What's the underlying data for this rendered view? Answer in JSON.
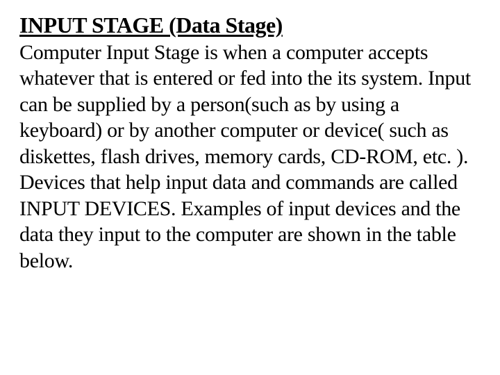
{
  "document": {
    "heading": "INPUT STAGE (Data Stage)",
    "body": "Computer Input Stage is when a computer accepts whatever that is entered or fed into the its system. Input can be supplied by a person(such as by using a keyboard) or by another computer or device( such as diskettes, flash drives, memory cards, CD-ROM, etc. ). Devices that help input data and commands are called INPUT DEVICES. Examples of input devices and the data they input to the computer are shown in the table below.",
    "colors": {
      "background": "#ffffff",
      "text": "#000000"
    },
    "typography": {
      "heading_fontsize": 32,
      "heading_weight": 700,
      "heading_underline": true,
      "body_fontsize": 30,
      "body_weight": 400,
      "font_family": "Georgia, serif",
      "line_height": 1.25
    }
  }
}
